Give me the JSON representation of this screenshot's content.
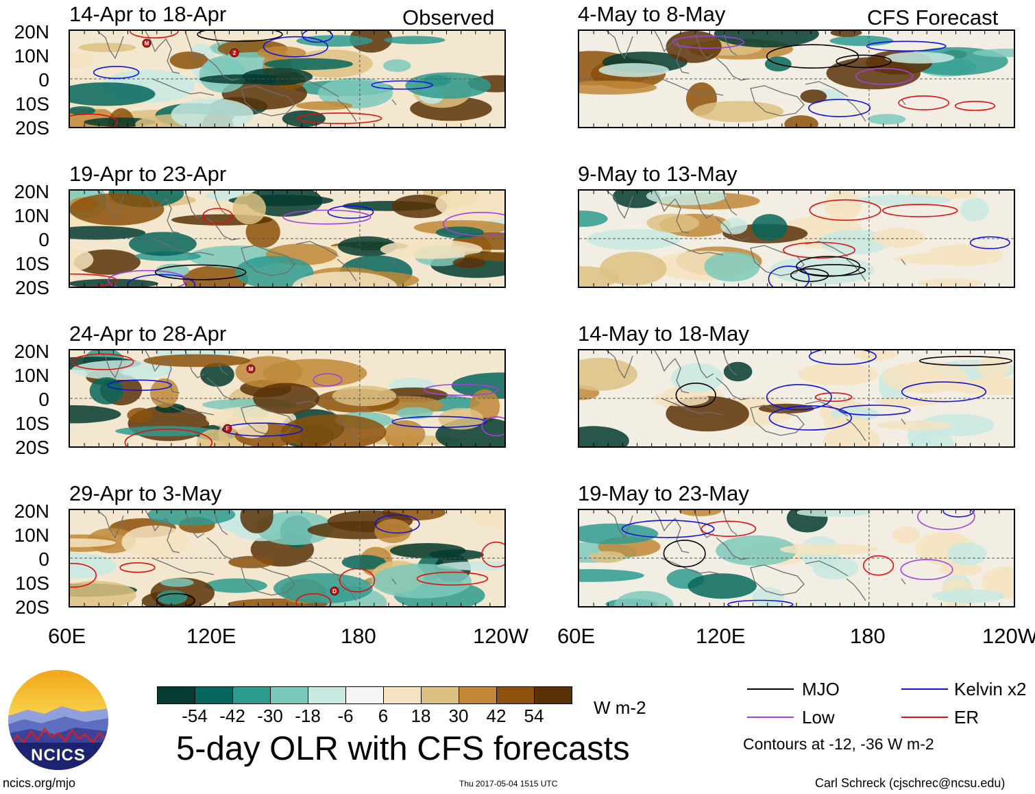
{
  "header": {
    "left_label": "Observed",
    "right_label": "CFS Forecast"
  },
  "panels": [
    {
      "title": "14-Apr to 18-Apr",
      "kind": "observed"
    },
    {
      "title": "4-May to 8-May",
      "kind": "forecast"
    },
    {
      "title": "19-Apr to 23-Apr",
      "kind": "observed"
    },
    {
      "title": "9-May to 13-May",
      "kind": "forecast"
    },
    {
      "title": "24-Apr to 28-Apr",
      "kind": "observed"
    },
    {
      "title": "14-May to 18-May",
      "kind": "forecast"
    },
    {
      "title": "29-Apr to 3-May",
      "kind": "observed"
    },
    {
      "title": "19-May to 23-May",
      "kind": "forecast"
    }
  ],
  "lat_labels": [
    "20N",
    "10N",
    "0",
    "10S",
    "20S"
  ],
  "lon_labels": [
    "60E",
    "120E",
    "180",
    "120W"
  ],
  "colorbar": {
    "colors": [
      "#053b30",
      "#06665c",
      "#2e9b8f",
      "#7cc9bb",
      "#c7e9e2",
      "#f5f5f5",
      "#f4e3c0",
      "#ddc182",
      "#c08838",
      "#8c510a",
      "#5a3208"
    ],
    "labels": [
      "-54",
      "-42",
      "-30",
      "-18",
      "-6",
      "6",
      "18",
      "30",
      "42",
      "54"
    ],
    "units": "W m-2"
  },
  "title": "5-day OLR with CFS forecasts",
  "legend": {
    "items": [
      {
        "label": "MJO",
        "color": "#000000"
      },
      {
        "label": "Kelvin x2",
        "color": "#1010e0"
      },
      {
        "label": "Low",
        "color": "#a040e0"
      },
      {
        "label": "ER",
        "color": "#e01010"
      }
    ],
    "note": "Contours at -12, -36 W m-2"
  },
  "logo": {
    "text": "NCICS"
  },
  "footer": {
    "url": "ncics.org/mjo",
    "timestamp": "Thu 2017-05-04 1515 UTC",
    "credit": "Carl Schreck (cjschrec@ncsu.edu)"
  },
  "markers": [
    {
      "panel": 0,
      "letter": "M"
    },
    {
      "panel": 0,
      "letter": "2"
    },
    {
      "panel": 4,
      "letter": "M"
    },
    {
      "panel": 4,
      "letter": "F"
    },
    {
      "panel": 6,
      "letter": "D"
    }
  ]
}
